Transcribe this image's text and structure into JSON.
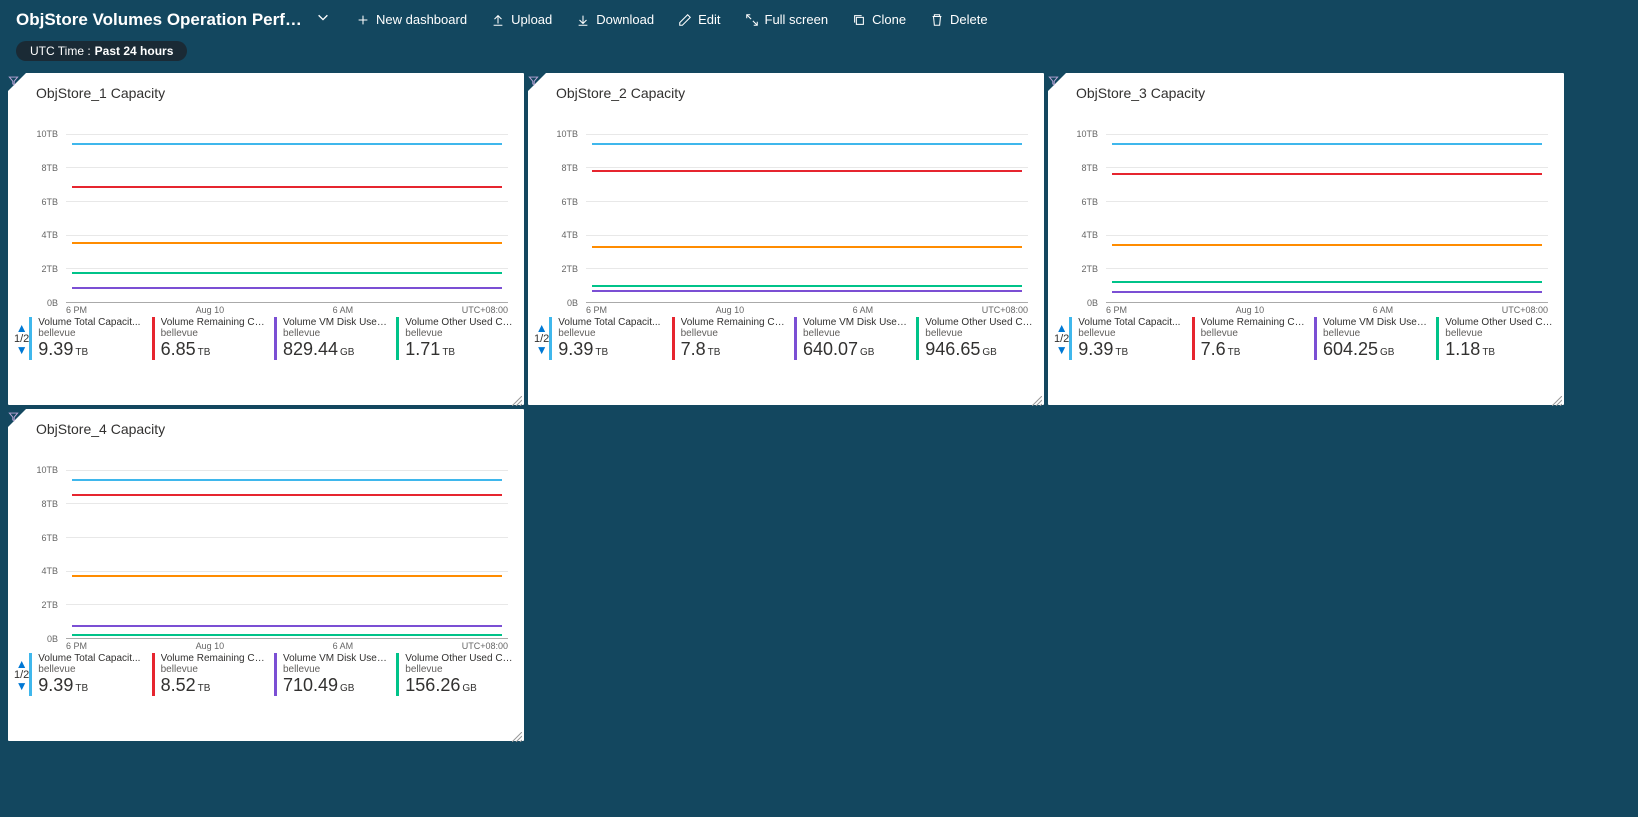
{
  "header": {
    "title": "ObjStore Volumes Operation Perfo...",
    "buttons": {
      "new_dashboard": "New dashboard",
      "upload": "Upload",
      "download": "Download",
      "edit": "Edit",
      "full_screen": "Full screen",
      "clone": "Clone",
      "delete": "Delete"
    }
  },
  "time_pill": {
    "prefix": "UTC Time :",
    "value": "Past 24 hours"
  },
  "chart_style": {
    "background": "#ffffff",
    "grid_color": "#e8e8e8",
    "axis_font_size": 9,
    "axis_color": "#666666",
    "ylim": [
      0,
      11
    ],
    "yticks": [
      {
        "label": "10TB",
        "value": 10
      },
      {
        "label": "8TB",
        "value": 8
      },
      {
        "label": "6TB",
        "value": 6
      },
      {
        "label": "4TB",
        "value": 4
      },
      {
        "label": "2TB",
        "value": 2
      },
      {
        "label": "0B",
        "value": 0
      }
    ],
    "xticks": [
      "6 PM",
      "Aug 10",
      "6 AM",
      "UTC+08:00"
    ],
    "series_colors": {
      "total": "#3fb7ec",
      "remaining": "#e6252f",
      "vmdisk": "#7b4fd4",
      "other": "#00c389",
      "orange": "#ff8c00"
    },
    "line_width": 2,
    "pager": "1/2"
  },
  "panels": [
    {
      "title": "ObjStore_1 Capacity",
      "source": "bellevue",
      "series": [
        {
          "key": "total",
          "y_tb": 9.39,
          "label": "Volume Total Capacit...",
          "value": "9.39",
          "unit": "TB"
        },
        {
          "key": "remaining",
          "y_tb": 6.85,
          "label": "Volume Remaining Cap...",
          "value": "6.85",
          "unit": "TB"
        },
        {
          "key": "orange",
          "y_tb": 3.5,
          "label": null,
          "value": null,
          "unit": null
        },
        {
          "key": "other",
          "y_tb": 1.71,
          "label": "Volume Other Used Ca...",
          "value": "1.71",
          "unit": "TB"
        },
        {
          "key": "vmdisk",
          "y_tb": 0.83,
          "label": "Volume VM Disk Used ...",
          "value": "829.44",
          "unit": "GB"
        }
      ]
    },
    {
      "title": "ObjStore_2 Capacity",
      "source": "bellevue",
      "series": [
        {
          "key": "total",
          "y_tb": 9.39,
          "label": "Volume Total Capacit...",
          "value": "9.39",
          "unit": "TB"
        },
        {
          "key": "remaining",
          "y_tb": 7.8,
          "label": "Volume Remaining Cap...",
          "value": "7.8",
          "unit": "TB"
        },
        {
          "key": "orange",
          "y_tb": 3.3,
          "label": null,
          "value": null,
          "unit": null
        },
        {
          "key": "other",
          "y_tb": 0.95,
          "label": "Volume Other Used Ca...",
          "value": "946.65",
          "unit": "GB"
        },
        {
          "key": "vmdisk",
          "y_tb": 0.64,
          "label": "Volume VM Disk Used ...",
          "value": "640.07",
          "unit": "GB"
        }
      ]
    },
    {
      "title": "ObjStore_3 Capacity",
      "source": "bellevue",
      "series": [
        {
          "key": "total",
          "y_tb": 9.39,
          "label": "Volume Total Capacit...",
          "value": "9.39",
          "unit": "TB"
        },
        {
          "key": "remaining",
          "y_tb": 7.6,
          "label": "Volume Remaining Cap...",
          "value": "7.6",
          "unit": "TB"
        },
        {
          "key": "orange",
          "y_tb": 3.4,
          "label": null,
          "value": null,
          "unit": null
        },
        {
          "key": "other",
          "y_tb": 1.18,
          "label": "Volume Other Used Ca...",
          "value": "1.18",
          "unit": "TB"
        },
        {
          "key": "vmdisk",
          "y_tb": 0.6,
          "label": "Volume VM Disk Used ...",
          "value": "604.25",
          "unit": "GB"
        }
      ]
    },
    {
      "title": "ObjStore_4 Capacity",
      "source": "bellevue",
      "series": [
        {
          "key": "total",
          "y_tb": 9.39,
          "label": "Volume Total Capacit...",
          "value": "9.39",
          "unit": "TB"
        },
        {
          "key": "remaining",
          "y_tb": 8.52,
          "label": "Volume Remaining Cap...",
          "value": "8.52",
          "unit": "TB"
        },
        {
          "key": "orange",
          "y_tb": 3.7,
          "label": null,
          "value": null,
          "unit": null
        },
        {
          "key": "vmdisk",
          "y_tb": 0.71,
          "label": "Volume VM Disk Used ...",
          "value": "710.49",
          "unit": "GB"
        },
        {
          "key": "other",
          "y_tb": 0.16,
          "label": "Volume Other Used Ca...",
          "value": "156.26",
          "unit": "GB"
        }
      ]
    }
  ],
  "legend_order": [
    "total",
    "remaining",
    "vmdisk",
    "other"
  ]
}
